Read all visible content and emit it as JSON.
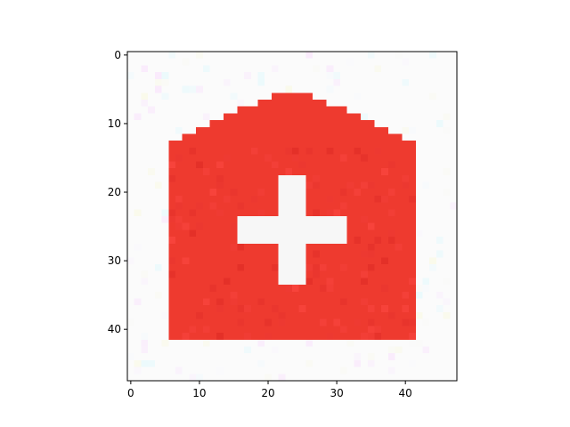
{
  "chart_data": {
    "type": "heatmap",
    "title": "",
    "xlabel": "",
    "ylabel": "",
    "grid": false,
    "xlim": [
      -0.5,
      47.5
    ],
    "ylim": [
      47.5,
      -0.5
    ],
    "y_axis_inverted": true,
    "x_ticks": [
      0,
      10,
      20,
      30,
      40
    ],
    "y_ticks": [
      0,
      10,
      20,
      30,
      40
    ],
    "image_size": [
      48,
      48
    ],
    "colors": {
      "background": "#fbfbfb",
      "shape": "#ee3a2f",
      "cross": "#f7f7f7"
    },
    "shape": {
      "name": "house",
      "roof_top_rows": [
        6,
        13
      ],
      "roof_peak_cols": [
        21,
        26
      ],
      "body_rows": [
        13,
        41
      ],
      "body_cols": [
        6,
        41
      ]
    },
    "cross": {
      "vertical_rows": [
        18,
        33
      ],
      "vertical_cols": [
        22,
        25
      ],
      "horizontal_rows": [
        24,
        27
      ],
      "horizontal_cols": [
        16,
        31
      ]
    }
  }
}
